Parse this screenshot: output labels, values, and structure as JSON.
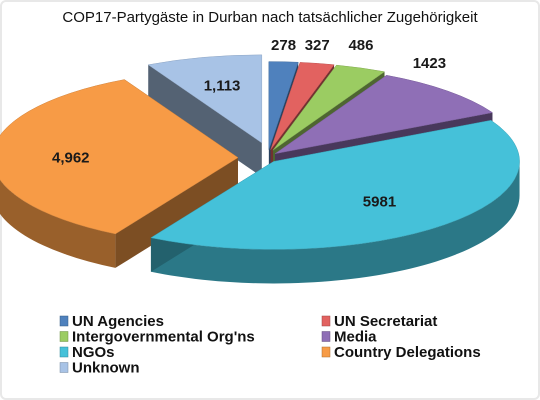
{
  "chart_data": {
    "type": "pie",
    "title": "COP17-Partygäste in Durban nach tatsächlicher Zugehörigkeit",
    "legend_position": "bottom",
    "slices": [
      {
        "label": "UN Agencies",
        "value": 278,
        "value_label": "278",
        "color": "#4f81bd"
      },
      {
        "label": "UN Secretariat",
        "value": 327,
        "value_label": "327",
        "color": "#e26260"
      },
      {
        "label": "Intergovernmental Org'ns",
        "value": 486,
        "value_label": "486",
        "color": "#9bcc62"
      },
      {
        "label": "Media",
        "value": 1423,
        "value_label": "1423",
        "color": "#8f6fb6"
      },
      {
        "label": "NGOs",
        "value": 5981,
        "value_label": "5981",
        "color": "#45c1d9"
      },
      {
        "label": "Country Delegations",
        "value": 4962,
        "value_label": "4,962",
        "color": "#f79b46"
      },
      {
        "label": "Unknown",
        "value": 1113,
        "value_label": "1,113",
        "color": "#a8c3e6"
      }
    ]
  }
}
